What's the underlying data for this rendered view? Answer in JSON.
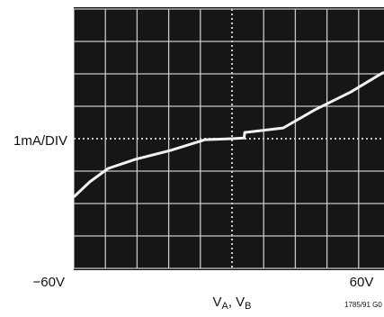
{
  "chart_data": {
    "type": "line",
    "y_label": "1mA/DIV",
    "x_start_label": "−60V",
    "x_end_label": "60V",
    "x_label_parts": [
      "V",
      "A",
      ", V",
      "B"
    ],
    "figure_id": "1785/91 G0",
    "x": [
      -60,
      -53.9,
      -47,
      -36.8,
      -23.2,
      -10.2,
      0,
      4.6,
      4.8,
      19.4,
      31.4,
      45,
      55.2,
      57.6
    ],
    "series": [
      {
        "color": "#f2f2f2",
        "values": [
          -1.8,
          -1.33,
          -0.92,
          -0.64,
          -0.36,
          -0.03,
          0,
          0.02,
          0.19,
          0.33,
          0.89,
          1.44,
          1.94,
          2.05
        ]
      }
    ],
    "xlim": [
      -60,
      60
    ],
    "ylim": [
      -4,
      4
    ],
    "xticks": [
      -60,
      -48,
      -36,
      -24,
      -12,
      0,
      12,
      24,
      36,
      48,
      60
    ],
    "yticks": [
      -4,
      -3,
      -2,
      -1,
      0,
      1,
      2,
      3,
      4
    ],
    "grid": true
  }
}
